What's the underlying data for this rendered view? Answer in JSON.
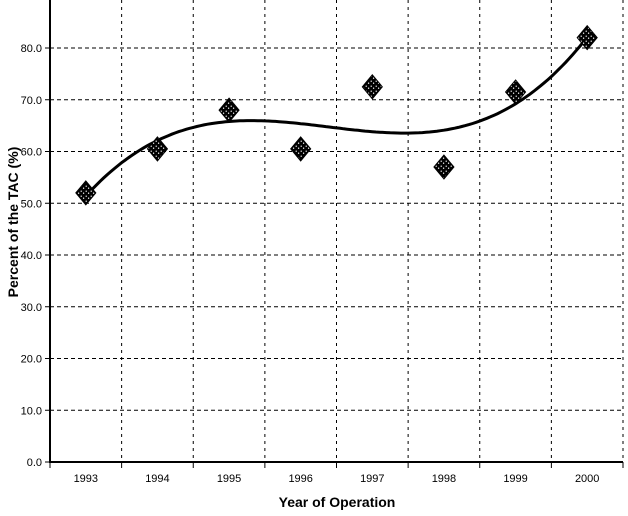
{
  "chart_data": {
    "type": "scatter",
    "xlabel": "Year of Operation",
    "ylabel": "Percent of the TAC (%)",
    "categories": [
      "1993",
      "1994",
      "1995",
      "1996",
      "1997",
      "1998",
      "1999",
      "2000"
    ],
    "series": [
      {
        "name": "Percent of the TAC",
        "marker": "speckled-diamond",
        "values": [
          52.0,
          60.5,
          68.0,
          60.5,
          72.5,
          57.0,
          71.5,
          82.0
        ]
      }
    ],
    "trendline": {
      "kind": "polynomial",
      "order": 3,
      "coefficients": [
        51.3864,
        15.2659,
        -5.0184,
        0.4949
      ]
    },
    "yticks": [
      0,
      10,
      20,
      30,
      40,
      50,
      60,
      70,
      80
    ],
    "ytick_labels": [
      "0.0",
      "10.0",
      "20.0",
      "30.0",
      "40.0",
      "50.0",
      "60.0",
      "70.0",
      "80.0"
    ],
    "ylim": [
      0,
      89.3
    ],
    "grid": {
      "horizontal": "dashed",
      "vertical": "dashed"
    },
    "legend": "none",
    "colors": {
      "fg": "#000000",
      "bg": "#ffffff"
    }
  }
}
